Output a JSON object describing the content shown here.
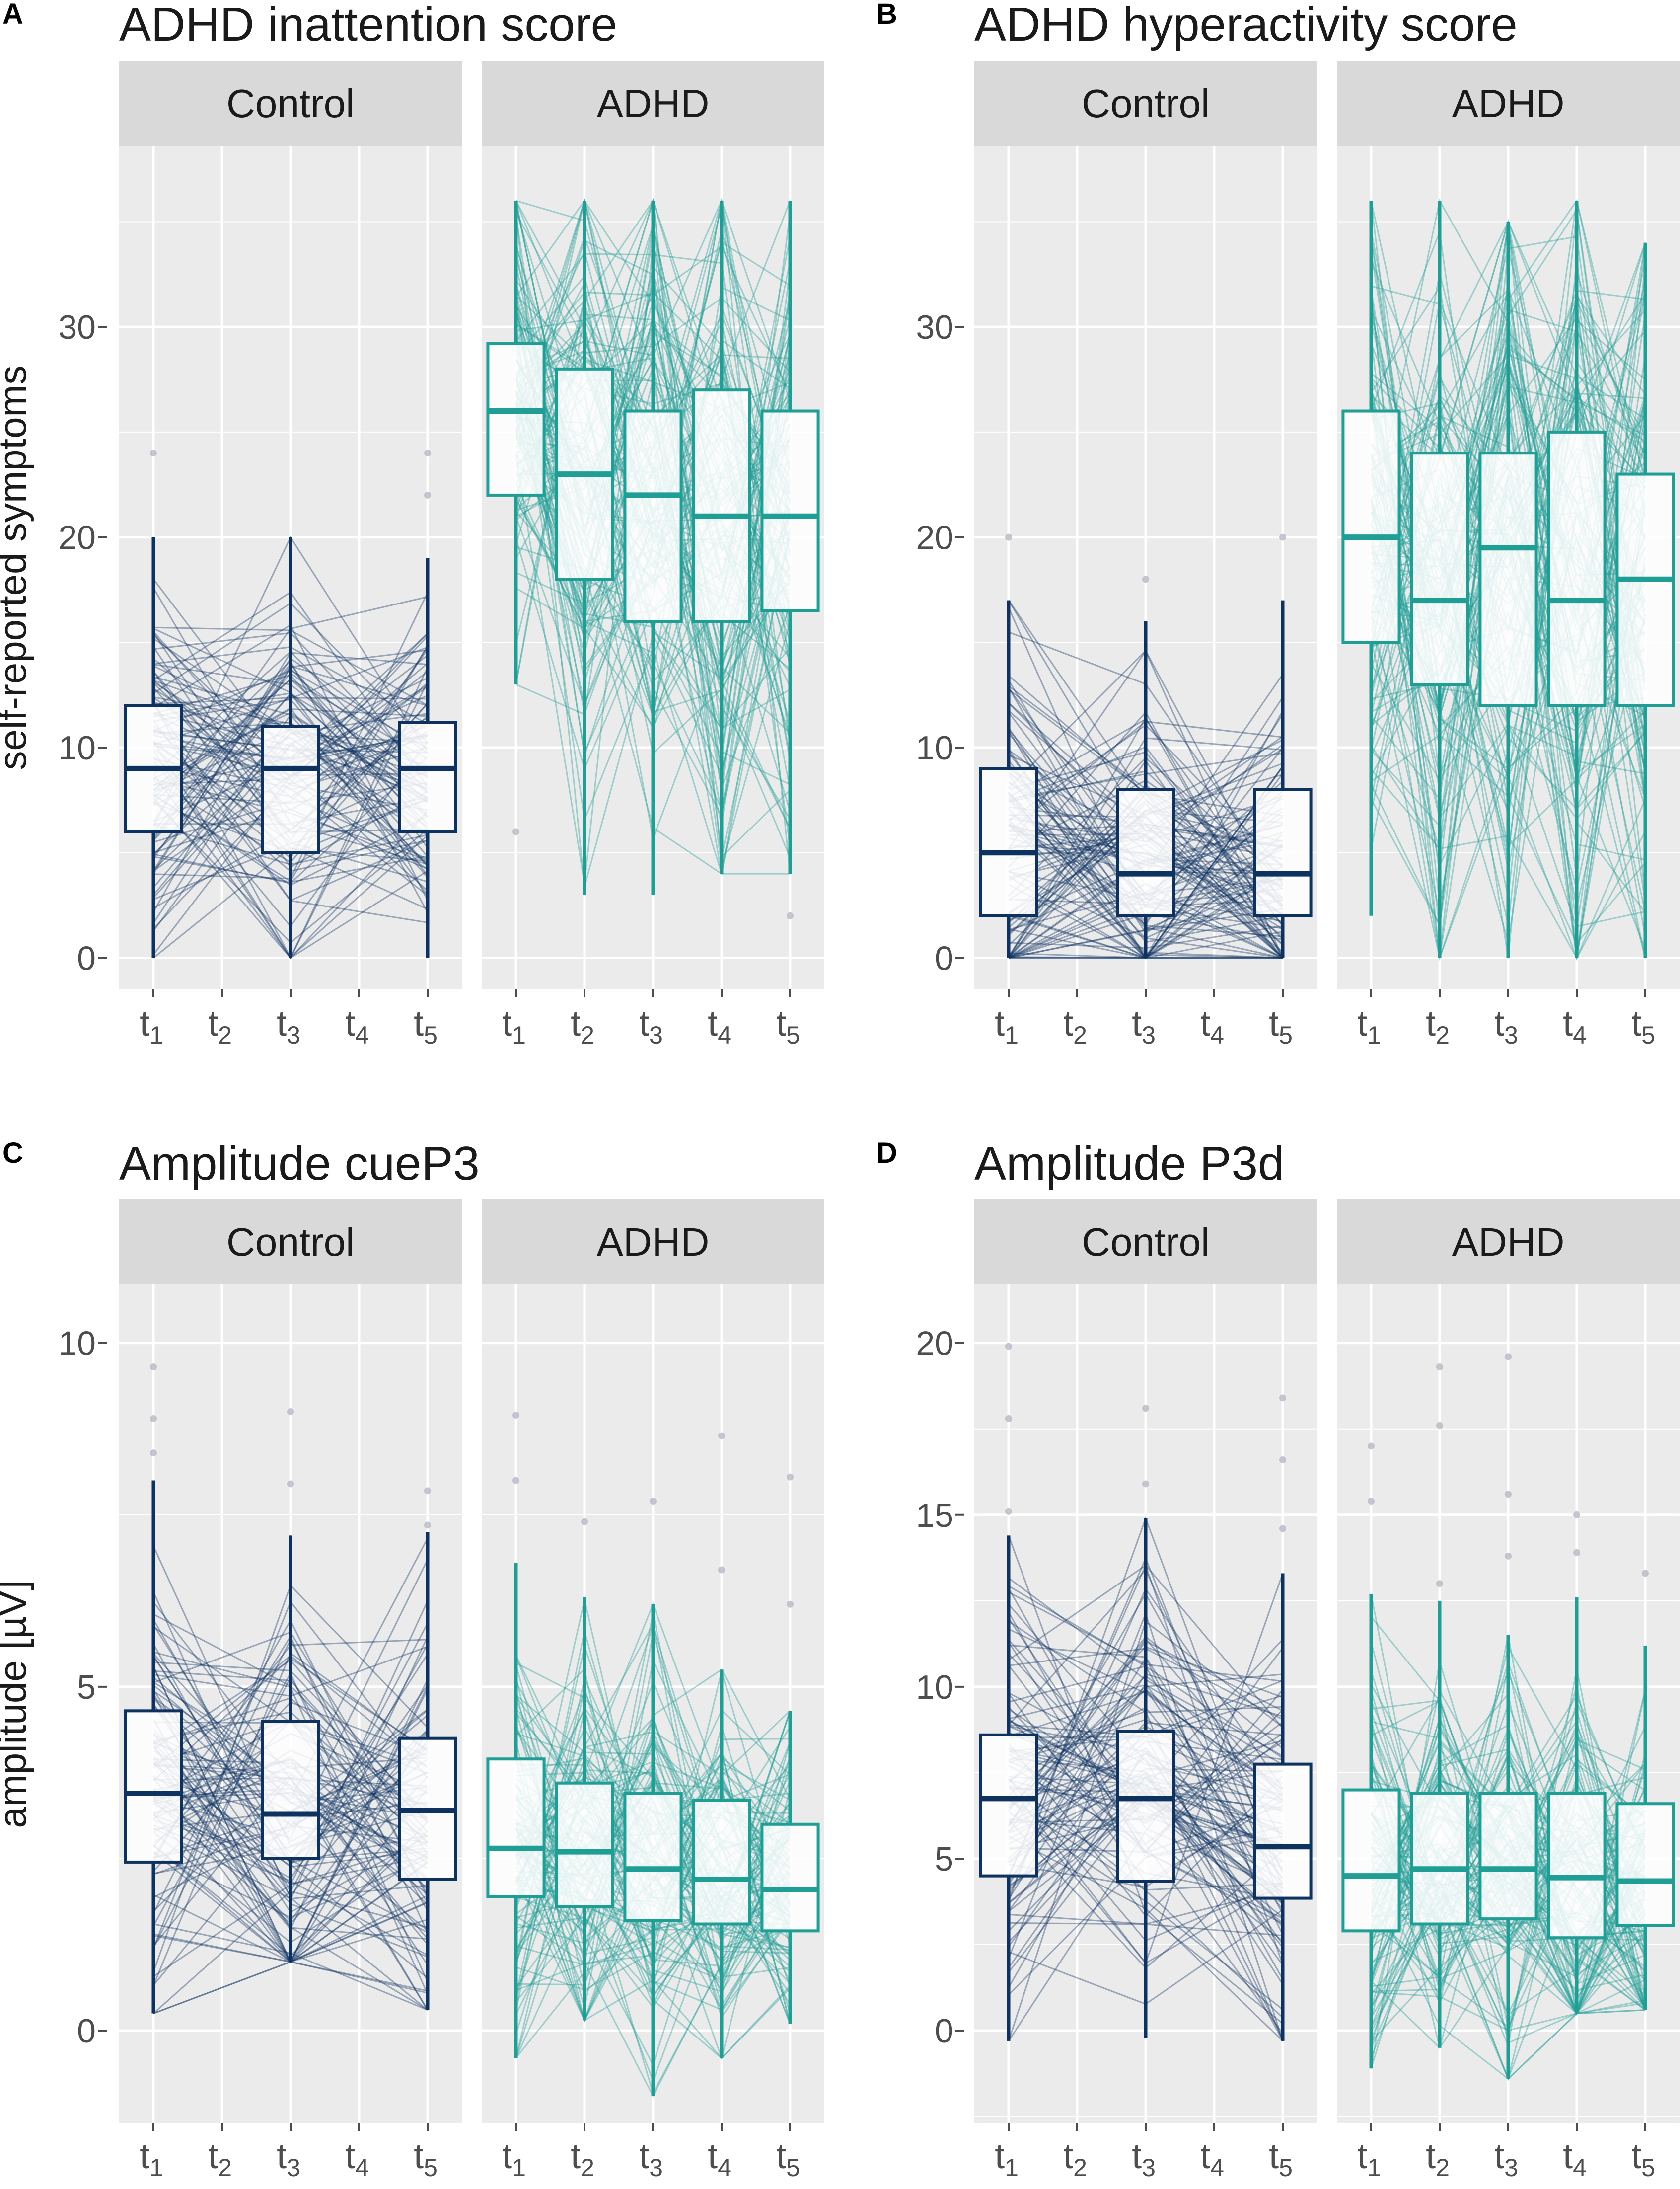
{
  "colors": {
    "control": "#0d3260",
    "adhd": "#1f9e96",
    "panel_bg": "#ebebeb",
    "strip_bg": "#d9d9d9",
    "grid": "#ffffff"
  },
  "chart_data": [
    {
      "letter": "A",
      "type": "box",
      "title": "ADHD inattention score",
      "ylabel": "self-reported symptoms",
      "ylim": [
        -1.5,
        38.6
      ],
      "yticks": [
        0,
        10,
        20,
        30
      ],
      "categories": [
        "t1",
        "t2",
        "t3",
        "t4",
        "t5"
      ],
      "facets": [
        {
          "label": "Control",
          "individual_lines": 110,
          "boxes": [
            {
              "x": "t1",
              "low": 0,
              "q1": 6,
              "median": 9,
              "q3": 12,
              "high": 20
            },
            {
              "x": "t3",
              "low": 0,
              "q1": 5,
              "median": 9,
              "q3": 11,
              "high": 20
            },
            {
              "x": "t5",
              "low": 0,
              "q1": 6,
              "median": 9,
              "q3": 11.2,
              "high": 19
            }
          ],
          "outliers": [
            {
              "x": "t1",
              "y": 24
            },
            {
              "x": "t5",
              "y": 22
            },
            {
              "x": "t5",
              "y": 24
            }
          ]
        },
        {
          "label": "ADHD",
          "individual_lines": 130,
          "boxes": [
            {
              "x": "t1",
              "low": 13,
              "q1": 22,
              "median": 26,
              "q3": 29.2,
              "high": 36
            },
            {
              "x": "t2",
              "low": 3,
              "q1": 18,
              "median": 23,
              "q3": 28,
              "high": 36
            },
            {
              "x": "t3",
              "low": 3,
              "q1": 16,
              "median": 22,
              "q3": 26,
              "high": 36
            },
            {
              "x": "t4",
              "low": 4,
              "q1": 16,
              "median": 21,
              "q3": 27,
              "high": 36
            },
            {
              "x": "t5",
              "low": 4,
              "q1": 16.5,
              "median": 21,
              "q3": 26,
              "high": 36
            }
          ],
          "outliers": [
            {
              "x": "t1",
              "y": 6
            },
            {
              "x": "t5",
              "y": 2
            }
          ]
        }
      ]
    },
    {
      "letter": "B",
      "type": "box",
      "title": "ADHD hyperactivity score",
      "ylabel": "",
      "ylim": [
        -1.5,
        38.6
      ],
      "yticks": [
        0,
        10,
        20,
        30
      ],
      "categories": [
        "t1",
        "t2",
        "t3",
        "t4",
        "t5"
      ],
      "facets": [
        {
          "label": "Control",
          "individual_lines": 110,
          "boxes": [
            {
              "x": "t1",
              "low": 0,
              "q1": 2,
              "median": 5,
              "q3": 9,
              "high": 17
            },
            {
              "x": "t3",
              "low": 0,
              "q1": 2,
              "median": 4,
              "q3": 8,
              "high": 16
            },
            {
              "x": "t5",
              "low": 0,
              "q1": 2,
              "median": 4,
              "q3": 8,
              "high": 17
            }
          ],
          "outliers": [
            {
              "x": "t1",
              "y": 20
            },
            {
              "x": "t3",
              "y": 18
            },
            {
              "x": "t5",
              "y": 20
            }
          ]
        },
        {
          "label": "ADHD",
          "individual_lines": 130,
          "boxes": [
            {
              "x": "t1",
              "low": 2,
              "q1": 15,
              "median": 20,
              "q3": 26,
              "high": 36
            },
            {
              "x": "t2",
              "low": 0,
              "q1": 13,
              "median": 17,
              "q3": 24,
              "high": 36
            },
            {
              "x": "t3",
              "low": 0,
              "q1": 12,
              "median": 19.5,
              "q3": 24,
              "high": 35
            },
            {
              "x": "t4",
              "low": 0,
              "q1": 12,
              "median": 17,
              "q3": 25,
              "high": 36
            },
            {
              "x": "t5",
              "low": 0,
              "q1": 12,
              "median": 18,
              "q3": 23,
              "high": 34
            }
          ],
          "outliers": []
        }
      ]
    },
    {
      "letter": "C",
      "type": "box",
      "title": "Amplitude cueP3",
      "ylabel": "amplitude [µV]",
      "ylim": [
        -1.35,
        10.85
      ],
      "yticks": [
        0,
        5,
        10
      ],
      "categories": [
        "t1",
        "t2",
        "t3",
        "t4",
        "t5"
      ],
      "facets": [
        {
          "label": "Control",
          "individual_lines": 110,
          "boxes": [
            {
              "x": "t1",
              "low": 0.25,
              "q1": 2.45,
              "median": 3.45,
              "q3": 4.65,
              "high": 8.0
            },
            {
              "x": "t3",
              "low": 1.0,
              "q1": 2.5,
              "median": 3.15,
              "q3": 4.5,
              "high": 7.2
            },
            {
              "x": "t5",
              "low": 0.3,
              "q1": 2.2,
              "median": 3.2,
              "q3": 4.25,
              "high": 7.25
            }
          ],
          "outliers": [
            {
              "x": "t1",
              "y": 9.65
            },
            {
              "x": "t1",
              "y": 8.9
            },
            {
              "x": "t1",
              "y": 8.4
            },
            {
              "x": "t3",
              "y": 9.0
            },
            {
              "x": "t3",
              "y": 7.95
            },
            {
              "x": "t5",
              "y": 7.85
            },
            {
              "x": "t5",
              "y": 7.35
            }
          ]
        },
        {
          "label": "ADHD",
          "individual_lines": 120,
          "boxes": [
            {
              "x": "t1",
              "low": -0.4,
              "q1": 1.95,
              "median": 2.65,
              "q3": 3.95,
              "high": 6.8
            },
            {
              "x": "t2",
              "low": 0.15,
              "q1": 1.8,
              "median": 2.6,
              "q3": 3.6,
              "high": 6.3
            },
            {
              "x": "t3",
              "low": -0.95,
              "q1": 1.6,
              "median": 2.35,
              "q3": 3.45,
              "high": 6.2
            },
            {
              "x": "t4",
              "low": -0.4,
              "q1": 1.55,
              "median": 2.2,
              "q3": 3.35,
              "high": 5.25
            },
            {
              "x": "t5",
              "low": 0.1,
              "q1": 1.45,
              "median": 2.05,
              "q3": 3.0,
              "high": 4.65
            }
          ],
          "outliers": [
            {
              "x": "t1",
              "y": 8.95
            },
            {
              "x": "t1",
              "y": 8.0
            },
            {
              "x": "t2",
              "y": 7.4
            },
            {
              "x": "t3",
              "y": 7.7
            },
            {
              "x": "t4",
              "y": 8.65
            },
            {
              "x": "t4",
              "y": 6.7
            },
            {
              "x": "t5",
              "y": 8.05
            },
            {
              "x": "t5",
              "y": 6.2
            }
          ]
        }
      ]
    },
    {
      "letter": "D",
      "type": "box",
      "title": "Amplitude P3d",
      "ylabel": "",
      "ylim": [
        -2.7,
        21.7
      ],
      "yticks": [
        0,
        5,
        10,
        15,
        20
      ],
      "categories": [
        "t1",
        "t2",
        "t3",
        "t4",
        "t5"
      ],
      "facets": [
        {
          "label": "Control",
          "individual_lines": 110,
          "boxes": [
            {
              "x": "t1",
              "low": -0.3,
              "q1": 4.5,
              "median": 6.75,
              "q3": 8.6,
              "high": 14.4
            },
            {
              "x": "t3",
              "low": -0.2,
              "q1": 4.35,
              "median": 6.75,
              "q3": 8.7,
              "high": 14.9
            },
            {
              "x": "t5",
              "low": -0.3,
              "q1": 3.85,
              "median": 5.35,
              "q3": 7.75,
              "high": 13.3
            }
          ],
          "outliers": [
            {
              "x": "t1",
              "y": 19.9
            },
            {
              "x": "t1",
              "y": 17.8
            },
            {
              "x": "t1",
              "y": 15.1
            },
            {
              "x": "t3",
              "y": 18.1
            },
            {
              "x": "t3",
              "y": 15.9
            },
            {
              "x": "t5",
              "y": 18.4
            },
            {
              "x": "t5",
              "y": 16.6
            },
            {
              "x": "t5",
              "y": 14.6
            }
          ]
        },
        {
          "label": "ADHD",
          "individual_lines": 120,
          "boxes": [
            {
              "x": "t1",
              "low": -1.1,
              "q1": 2.9,
              "median": 4.5,
              "q3": 7.0,
              "high": 12.7
            },
            {
              "x": "t2",
              "low": -0.5,
              "q1": 3.1,
              "median": 4.7,
              "q3": 6.9,
              "high": 12.5
            },
            {
              "x": "t3",
              "low": -1.4,
              "q1": 3.25,
              "median": 4.7,
              "q3": 6.9,
              "high": 11.5
            },
            {
              "x": "t4",
              "low": 0.5,
              "q1": 2.7,
              "median": 4.45,
              "q3": 6.9,
              "high": 12.6
            },
            {
              "x": "t5",
              "low": 0.6,
              "q1": 3.05,
              "median": 4.35,
              "q3": 6.6,
              "high": 11.2
            }
          ],
          "outliers": [
            {
              "x": "t1",
              "y": 17.0
            },
            {
              "x": "t1",
              "y": 15.4
            },
            {
              "x": "t2",
              "y": 19.3
            },
            {
              "x": "t2",
              "y": 17.6
            },
            {
              "x": "t2",
              "y": 13.0
            },
            {
              "x": "t3",
              "y": 19.6
            },
            {
              "x": "t3",
              "y": 15.6
            },
            {
              "x": "t3",
              "y": 13.8
            },
            {
              "x": "t4",
              "y": 15.0
            },
            {
              "x": "t4",
              "y": 13.9
            },
            {
              "x": "t5",
              "y": 13.3
            }
          ]
        }
      ]
    }
  ]
}
